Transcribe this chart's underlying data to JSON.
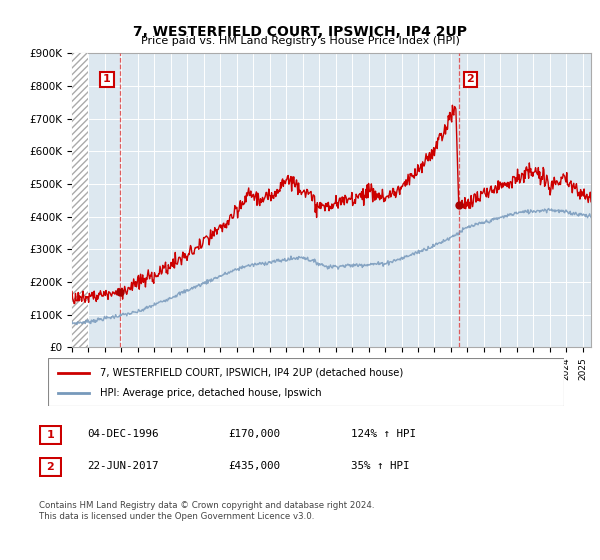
{
  "title": "7, WESTERFIELD COURT, IPSWICH, IP4 2UP",
  "subtitle": "Price paid vs. HM Land Registry's House Price Index (HPI)",
  "ylabel_ticks": [
    "£0",
    "£100K",
    "£200K",
    "£300K",
    "£400K",
    "£500K",
    "£600K",
    "£700K",
    "£800K",
    "£900K"
  ],
  "ytick_values": [
    0,
    100000,
    200000,
    300000,
    400000,
    500000,
    600000,
    700000,
    800000,
    900000
  ],
  "ylim": [
    0,
    900000
  ],
  "xlim_start": 1994.0,
  "xlim_end": 2025.5,
  "sale1": {
    "date_num": 1996.92,
    "price": 170000,
    "label": "1",
    "date_str": "04-DEC-1996",
    "hpi_pct": "124% ↑ HPI"
  },
  "sale2": {
    "date_num": 2017.47,
    "price": 435000,
    "label": "2",
    "date_str": "22-JUN-2017",
    "hpi_pct": "35% ↑ HPI"
  },
  "line_color_red": "#cc0000",
  "line_color_blue": "#7799bb",
  "dashed_line_color": "#dd4444",
  "marker_color": "#aa0000",
  "box_color": "#cc0000",
  "legend_label_red": "7, WESTERFIELD COURT, IPSWICH, IP4 2UP (detached house)",
  "legend_label_blue": "HPI: Average price, detached house, Ipswich",
  "footnote": "Contains HM Land Registry data © Crown copyright and database right 2024.\nThis data is licensed under the Open Government Licence v3.0.",
  "table_row1": [
    "1",
    "04-DEC-1996",
    "£170,000",
    "124% ↑ HPI"
  ],
  "table_row2": [
    "2",
    "22-JUN-2017",
    "£435,000",
    "35% ↑ HPI"
  ],
  "plot_bg_color": "#dde8f0",
  "bg_color": "#ffffff",
  "grid_color": "#ffffff",
  "hatch_area_end": 1995.0
}
